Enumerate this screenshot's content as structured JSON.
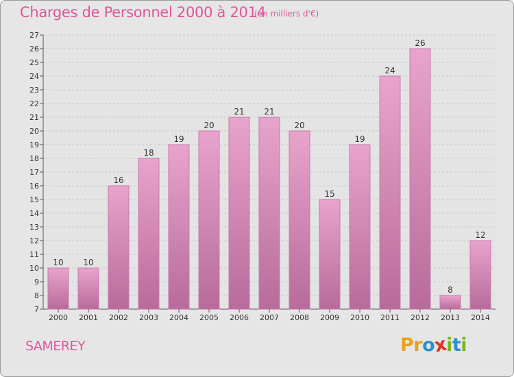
{
  "title": "Charges de Personnel 2000 à 2014",
  "subtitle": "(en milliers d'€)",
  "commune": "SAMEREY",
  "logo": {
    "letters": [
      "P",
      "r",
      "o",
      "x",
      "i",
      "t",
      "i"
    ],
    "colors": [
      "#e8a21d",
      "#e8a21d",
      "#2e8fd0",
      "#e0341f",
      "#7ab51d",
      "#2e8fd0",
      "#7ab51d"
    ]
  },
  "colors": {
    "accent": "#e0559a",
    "bar_top": "#e8a4cc",
    "bar_bottom": "#b86b9b",
    "bar_edge": "#c97aab",
    "background": "#e6e6e6",
    "grid": "#c8c8c8"
  },
  "chart_data": {
    "type": "bar",
    "categories": [
      "2000",
      "2001",
      "2002",
      "2003",
      "2004",
      "2005",
      "2006",
      "2007",
      "2008",
      "2009",
      "2010",
      "2011",
      "2012",
      "2013",
      "2014"
    ],
    "values": [
      10,
      10,
      16,
      18,
      19,
      20,
      21,
      21,
      20,
      15,
      19,
      24,
      26,
      8,
      12
    ],
    "title": "Charges de Personnel 2000 à 2014",
    "subtitle": "(en milliers d'€)",
    "xlabel": "",
    "ylabel": "",
    "ylim": [
      7,
      27
    ],
    "yticks": [
      7,
      8,
      9,
      10,
      11,
      12,
      13,
      14,
      15,
      16,
      17,
      18,
      19,
      20,
      21,
      22,
      23,
      24,
      25,
      26,
      27
    ],
    "grid": "horizontal dashed",
    "data_labels": true
  }
}
